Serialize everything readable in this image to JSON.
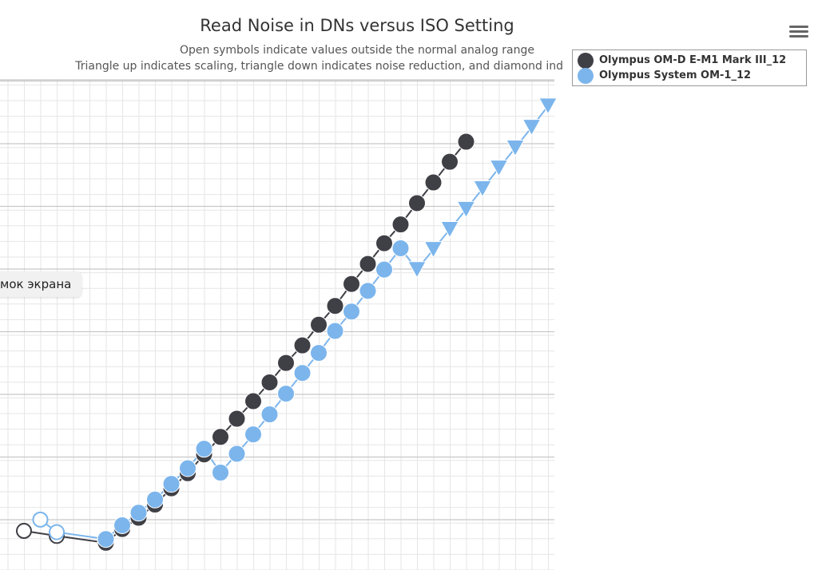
{
  "chart_data": {
    "type": "line",
    "title": "Read Noise in DNs versus ISO Setting",
    "subtitle_lines": [
      "Open symbols indicate values outside the normal analog range",
      "Triangle up indicates scaling, triangle down indicates noise reduction, and diamond ind"
    ],
    "x_scale": "log2",
    "grid": true,
    "legend_position": "top-right",
    "series": [
      {
        "name": "Olympus OM-D E-M1 Mark III_12",
        "color": "#3f3f46",
        "points": [
          {
            "x": 0,
            "y": 0.14,
            "marker": "open-circle"
          },
          {
            "x": 2,
            "y": 0.06,
            "marker": "open-circle"
          },
          {
            "x": 5,
            "y": -0.05,
            "marker": "circle"
          },
          {
            "x": 6,
            "y": 0.17,
            "marker": "circle"
          },
          {
            "x": 7,
            "y": 0.35,
            "marker": "circle"
          },
          {
            "x": 8,
            "y": 0.56,
            "marker": "circle"
          },
          {
            "x": 9,
            "y": 0.82,
            "marker": "circle"
          },
          {
            "x": 10,
            "y": 1.06,
            "marker": "circle"
          },
          {
            "x": 11,
            "y": 1.36,
            "marker": "circle"
          },
          {
            "x": 12,
            "y": 1.64,
            "marker": "circle"
          },
          {
            "x": 13,
            "y": 1.93,
            "marker": "circle"
          },
          {
            "x": 14,
            "y": 2.21,
            "marker": "circle"
          },
          {
            "x": 15,
            "y": 2.51,
            "marker": "circle"
          },
          {
            "x": 16,
            "y": 2.82,
            "marker": "circle"
          },
          {
            "x": 17,
            "y": 3.1,
            "marker": "circle"
          },
          {
            "x": 18,
            "y": 3.43,
            "marker": "circle"
          },
          {
            "x": 19,
            "y": 3.73,
            "marker": "circle"
          },
          {
            "x": 20,
            "y": 4.08,
            "marker": "circle"
          },
          {
            "x": 21,
            "y": 4.4,
            "marker": "circle"
          },
          {
            "x": 22,
            "y": 4.73,
            "marker": "circle"
          },
          {
            "x": 23,
            "y": 5.03,
            "marker": "circle"
          },
          {
            "x": 24,
            "y": 5.37,
            "marker": "circle"
          },
          {
            "x": 25,
            "y": 5.7,
            "marker": "circle"
          },
          {
            "x": 26,
            "y": 6.03,
            "marker": "circle"
          },
          {
            "x": 27,
            "y": 6.35,
            "marker": "circle"
          }
        ]
      },
      {
        "name": "Olympus System OM-1_12",
        "color": "#7cb5ec",
        "points": [
          {
            "x": 1,
            "y": 0.32,
            "marker": "open-circle"
          },
          {
            "x": 2,
            "y": 0.12,
            "marker": "open-circle"
          },
          {
            "x": 5,
            "y": 0.01,
            "marker": "circle"
          },
          {
            "x": 6,
            "y": 0.23,
            "marker": "circle"
          },
          {
            "x": 7,
            "y": 0.43,
            "marker": "circle"
          },
          {
            "x": 8,
            "y": 0.64,
            "marker": "circle"
          },
          {
            "x": 9,
            "y": 0.89,
            "marker": "circle"
          },
          {
            "x": 10,
            "y": 1.14,
            "marker": "circle"
          },
          {
            "x": 11,
            "y": 1.45,
            "marker": "circle"
          },
          {
            "x": 12,
            "y": 1.07,
            "marker": "circle"
          },
          {
            "x": 13,
            "y": 1.37,
            "marker": "circle"
          },
          {
            "x": 14,
            "y": 1.68,
            "marker": "circle"
          },
          {
            "x": 15,
            "y": 2.0,
            "marker": "circle"
          },
          {
            "x": 16,
            "y": 2.33,
            "marker": "circle"
          },
          {
            "x": 17,
            "y": 2.66,
            "marker": "circle"
          },
          {
            "x": 18,
            "y": 2.98,
            "marker": "circle"
          },
          {
            "x": 19,
            "y": 3.33,
            "marker": "circle"
          },
          {
            "x": 20,
            "y": 3.64,
            "marker": "circle"
          },
          {
            "x": 21,
            "y": 3.97,
            "marker": "circle"
          },
          {
            "x": 22,
            "y": 4.31,
            "marker": "circle"
          },
          {
            "x": 23,
            "y": 4.65,
            "marker": "circle"
          },
          {
            "x": 24,
            "y": 4.31,
            "marker": "triangle-down"
          },
          {
            "x": 25,
            "y": 4.63,
            "marker": "triangle-down"
          },
          {
            "x": 26,
            "y": 4.95,
            "marker": "triangle-down"
          },
          {
            "x": 27,
            "y": 5.27,
            "marker": "triangle-down"
          },
          {
            "x": 28,
            "y": 5.6,
            "marker": "triangle-down"
          },
          {
            "x": 29,
            "y": 5.93,
            "marker": "triangle-down"
          },
          {
            "x": 30,
            "y": 6.25,
            "marker": "triangle-down"
          },
          {
            "x": 31,
            "y": 6.58,
            "marker": "triangle-down"
          },
          {
            "x": 32,
            "y": 6.92,
            "marker": "triangle-down"
          }
        ]
      }
    ]
  },
  "tooltip": {
    "text": "мок экрана"
  },
  "menu": {
    "icon": "hamburger-menu-icon"
  }
}
